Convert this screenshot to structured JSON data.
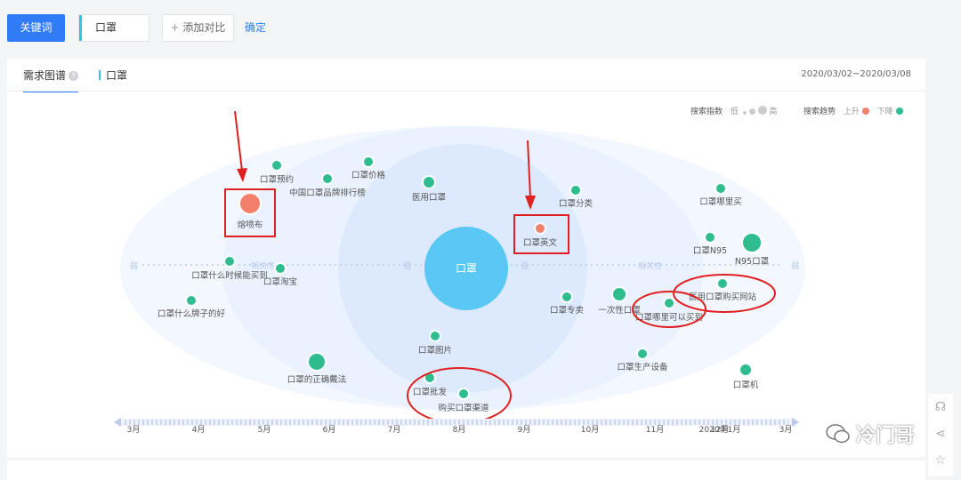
{
  "toolbar": {
    "keyword_button": "关键词",
    "keyword_value": "口罩",
    "add_compare": "添加对比",
    "confirm": "确定"
  },
  "tabs": {
    "active": "需求图谱",
    "keyword_tab": "口罩"
  },
  "date_range": "2020/03/02~2020/03/08",
  "legend": {
    "search_index_label": "搜索指数",
    "low": "低",
    "high": "高",
    "search_trend_label": "搜索趋势",
    "up": "上升",
    "down": "下降",
    "up_color": "#f4806b",
    "down_color": "#2fbd8f"
  },
  "chart": {
    "center_word": "口罩",
    "axis_weak_left": "弱",
    "axis_relevance_left": "相关性",
    "axis_strong_left": "强",
    "axis_strong_right": "强",
    "axis_relevance_right": "相关性",
    "axis_weak_right": "弱",
    "bubbles": [
      {
        "label": "熔喷布",
        "trend": "up"
      },
      {
        "label": "口罩预约",
        "trend": "down"
      },
      {
        "label": "中国口罩品牌排行榜",
        "trend": "down"
      },
      {
        "label": "口罩价格",
        "trend": "down"
      },
      {
        "label": "医用口罩",
        "trend": "down"
      },
      {
        "label": "口罩英文",
        "trend": "up"
      },
      {
        "label": "口罩分类",
        "trend": "down"
      },
      {
        "label": "口罩哪里买",
        "trend": "down"
      },
      {
        "label": "口罩N95",
        "trend": "down"
      },
      {
        "label": "N95口罩",
        "trend": "down"
      },
      {
        "label": "口罩什么时候能买到",
        "trend": "down"
      },
      {
        "label": "口罩淘宝",
        "trend": "down"
      },
      {
        "label": "口罩什么牌子的好",
        "trend": "down"
      },
      {
        "label": "医用口罩购买网站",
        "trend": "down"
      },
      {
        "label": "口罩专卖",
        "trend": "down"
      },
      {
        "label": "一次性口罩",
        "trend": "down"
      },
      {
        "label": "口罩哪里可以买到",
        "trend": "down"
      },
      {
        "label": "口罩图片",
        "trend": "down"
      },
      {
        "label": "口罩的正确戴法",
        "trend": "down"
      },
      {
        "label": "口罩生产设备",
        "trend": "down"
      },
      {
        "label": "口罩机",
        "trend": "down"
      },
      {
        "label": "口罩批发",
        "trend": "down"
      },
      {
        "label": "购买口罩渠道",
        "trend": "down"
      }
    ],
    "timeline": [
      "3月",
      "4月",
      "5月",
      "6月",
      "7月",
      "8月",
      "9月",
      "10月",
      "11月",
      "12月",
      "2020年1月",
      "3月"
    ]
  },
  "side_icons": [
    "headset-icon",
    "share-icon",
    "star-icon"
  ],
  "watermark": "冷门哥"
}
